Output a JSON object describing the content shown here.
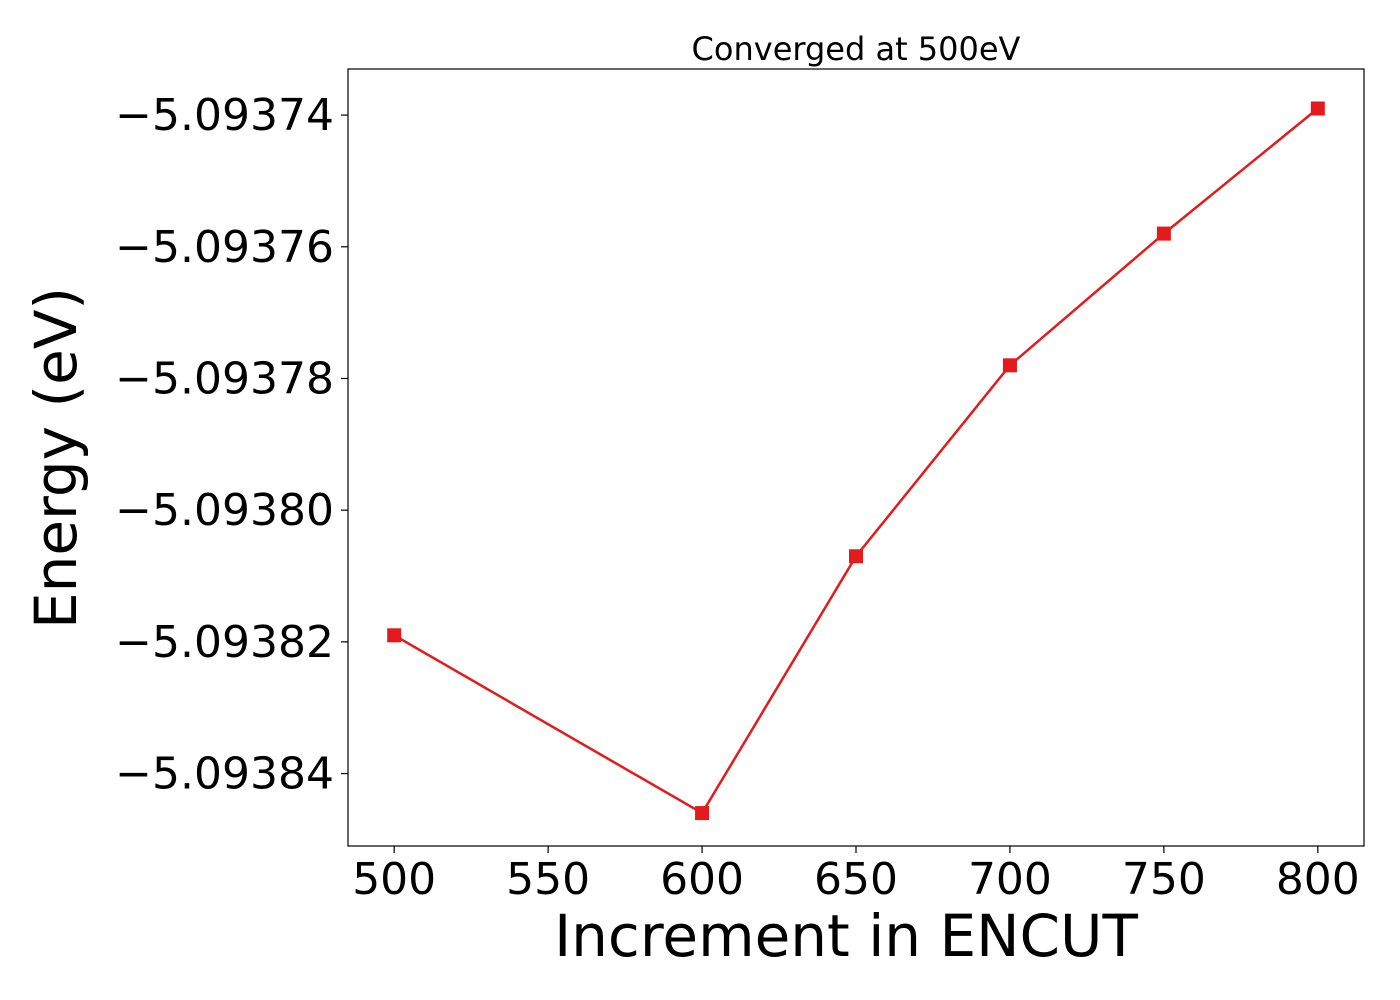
{
  "chart_data": {
    "type": "line",
    "title": "Converged at 500eV",
    "xlabel": "Increment in ENCUT",
    "ylabel": "Energy (eV)",
    "x": [
      500,
      600,
      650,
      700,
      750,
      800
    ],
    "x_ticks": [
      500,
      550,
      600,
      650,
      700,
      750,
      800
    ],
    "x_tick_labels": [
      "500",
      "550",
      "600",
      "650",
      "700",
      "750",
      "800"
    ],
    "xlim": [
      485,
      815
    ],
    "y_ticks": [
      -5.09374,
      -5.09376,
      -5.09378,
      -5.0938,
      -5.09382,
      -5.09384
    ],
    "y_tick_labels": [
      "−5.09374",
      "−5.09376",
      "−5.09378",
      "−5.09380",
      "−5.09382",
      "−5.09384"
    ],
    "ylim": [
      -5.093851,
      -5.093733
    ],
    "grid": false,
    "series": [
      {
        "color": "#e41a1c",
        "marker": "square",
        "values": [
          -5.093819,
          -5.093846,
          -5.093807,
          -5.093778,
          -5.093758,
          -5.093739
        ]
      }
    ]
  }
}
